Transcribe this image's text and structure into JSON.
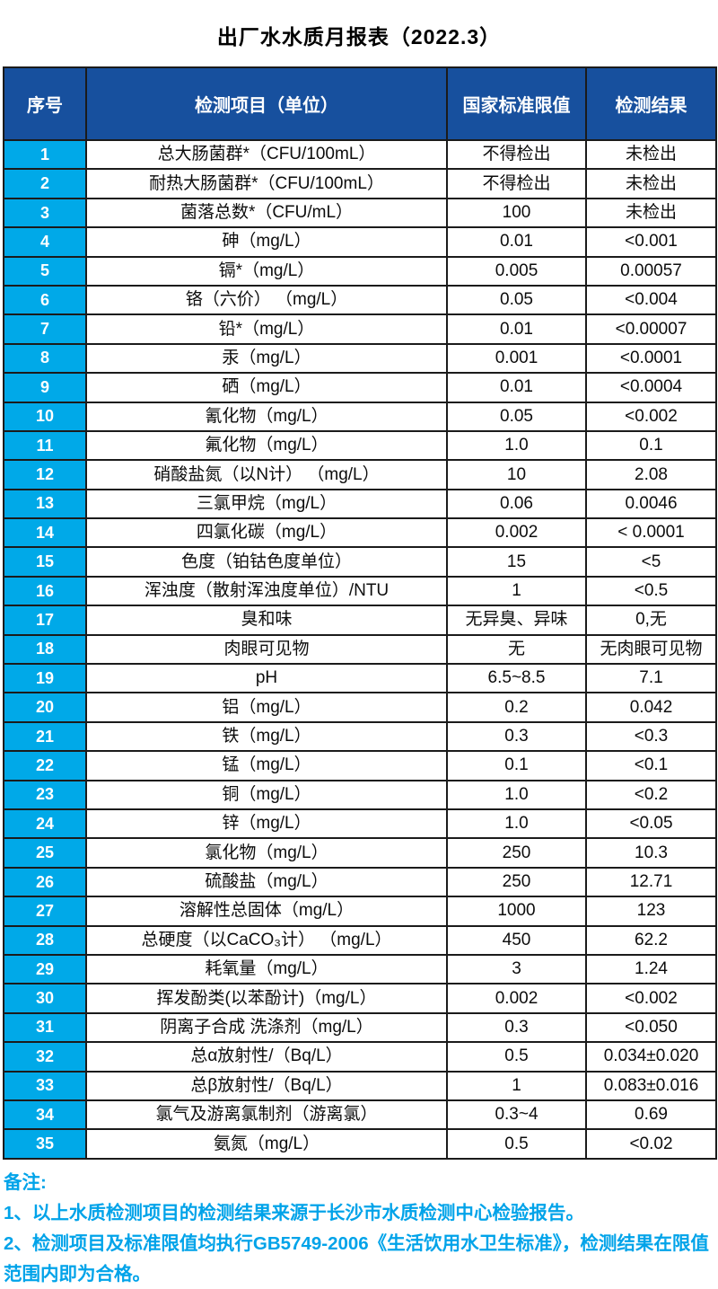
{
  "title": "出厂水水质月报表（2022.3）",
  "colors": {
    "header_bg": "#17509E",
    "serial_bg": "#00A9E8",
    "notes": "#00A3E9",
    "border": "#1B1B1B"
  },
  "table": {
    "columns": [
      "序号",
      "检测项目（单位）",
      "国家标准限值",
      "检测结果"
    ],
    "rows": [
      {
        "no": "1",
        "item": "总大肠菌群*（CFU/100mL）",
        "limit": "不得检出",
        "result": "未检出"
      },
      {
        "no": "2",
        "item": "耐热大肠菌群*（CFU/100mL）",
        "limit": "不得检出",
        "result": "未检出"
      },
      {
        "no": "3",
        "item": "菌落总数*（CFU/mL）",
        "limit": "100",
        "result": "未检出"
      },
      {
        "no": "4",
        "item": "砷（mg/L）",
        "limit": "0.01",
        "result": "<0.001"
      },
      {
        "no": "5",
        "item": "镉*（mg/L）",
        "limit": "0.005",
        "result": "0.00057"
      },
      {
        "no": "6",
        "item": "铬（六价） （mg/L）",
        "limit": "0.05",
        "result": "<0.004"
      },
      {
        "no": "7",
        "item": "铅*（mg/L）",
        "limit": "0.01",
        "result": "<0.00007"
      },
      {
        "no": "8",
        "item": "汞（mg/L）",
        "limit": "0.001",
        "result": "<0.0001"
      },
      {
        "no": "9",
        "item": "硒（mg/L）",
        "limit": "0.01",
        "result": "<0.0004"
      },
      {
        "no": "10",
        "item": "氰化物（mg/L）",
        "limit": "0.05",
        "result": "<0.002"
      },
      {
        "no": "11",
        "item": "氟化物（mg/L）",
        "limit": "1.0",
        "result": "0.1"
      },
      {
        "no": "12",
        "item": "硝酸盐氮（以N计） （mg/L）",
        "limit": "10",
        "result": "2.08"
      },
      {
        "no": "13",
        "item": "三氯甲烷（mg/L）",
        "limit": "0.06",
        "result": "0.0046"
      },
      {
        "no": "14",
        "item": "四氯化碳（mg/L）",
        "limit": "0.002",
        "result": "< 0.0001"
      },
      {
        "no": "15",
        "item": "色度（铂钴色度单位）",
        "limit": "15",
        "result": "<5"
      },
      {
        "no": "16",
        "item": "浑浊度（散射浑浊度单位）/NTU",
        "limit": "1",
        "result": "<0.5"
      },
      {
        "no": "17",
        "item": "臭和味",
        "limit": "无异臭、异味",
        "result": "0,无"
      },
      {
        "no": "18",
        "item": "肉眼可见物",
        "limit": "无",
        "result": "无肉眼可见物"
      },
      {
        "no": "19",
        "item": "pH",
        "limit": "6.5~8.5",
        "result": "7.1"
      },
      {
        "no": "20",
        "item": "铝（mg/L）",
        "limit": "0.2",
        "result": "0.042"
      },
      {
        "no": "21",
        "item": "铁（mg/L）",
        "limit": "0.3",
        "result": "<0.3"
      },
      {
        "no": "22",
        "item": "锰（mg/L）",
        "limit": "0.1",
        "result": "<0.1"
      },
      {
        "no": "23",
        "item": "铜（mg/L）",
        "limit": "1.0",
        "result": "<0.2"
      },
      {
        "no": "24",
        "item": "锌（mg/L）",
        "limit": "1.0",
        "result": "<0.05"
      },
      {
        "no": "25",
        "item": "氯化物（mg/L）",
        "limit": "250",
        "result": "10.3"
      },
      {
        "no": "26",
        "item": "硫酸盐（mg/L）",
        "limit": "250",
        "result": "12.71"
      },
      {
        "no": "27",
        "item": "溶解性总固体（mg/L）",
        "limit": "1000",
        "result": "123"
      },
      {
        "no": "28",
        "item": "总硬度（以CaCO₃计） （mg/L）",
        "limit": "450",
        "result": "62.2"
      },
      {
        "no": "29",
        "item": "耗氧量（mg/L）",
        "limit": "3",
        "result": "1.24"
      },
      {
        "no": "30",
        "item": "挥发酚类(以苯酚计)（mg/L）",
        "limit": "0.002",
        "result": "<0.002"
      },
      {
        "no": "31",
        "item": "阴离子合成 洗涤剂（mg/L）",
        "limit": "0.3",
        "result": "<0.050"
      },
      {
        "no": "32",
        "item": "总α放射性/（Bq/L）",
        "limit": "0.5",
        "result": "0.034±0.020"
      },
      {
        "no": "33",
        "item": "总β放射性/（Bq/L）",
        "limit": "1",
        "result": "0.083±0.016"
      },
      {
        "no": "34",
        "item": "氯气及游离氯制剂（游离氯）",
        "limit": "0.3~4",
        "result": "0.69"
      },
      {
        "no": "35",
        "item": "氨氮（mg/L）",
        "limit": "0.5",
        "result": "<0.02"
      }
    ]
  },
  "notes": {
    "label": "备注:",
    "items": [
      "1、以上水质检测项目的检测结果来源于长沙市水质检测中心检验报告。",
      "2、检测项目及标准限值均执行GB5749-2006《生活饮用水卫生标准》，检测结果在限值范围内即为合格。"
    ]
  }
}
